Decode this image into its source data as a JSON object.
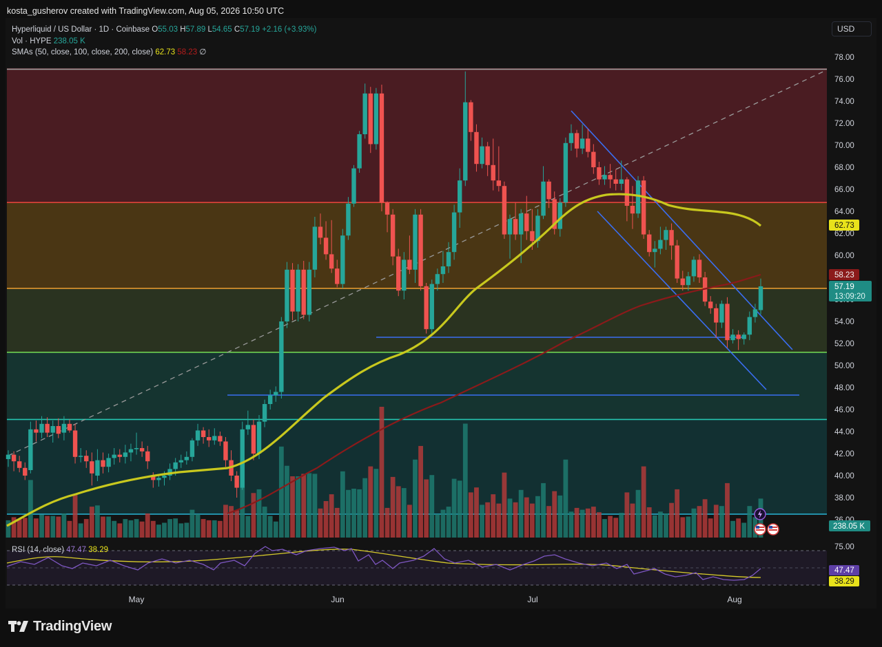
{
  "header": {
    "credit": "kosta_gusherov created with TradingView.com, Aug 05, 2026 10:50 UTC"
  },
  "legend": {
    "symbol": "Hyperliquid / US Dollar · 1D · Coinbase",
    "o_label": "O",
    "o_value": "55.03",
    "h_label": "H",
    "h_value": "57.89",
    "l_label": "L",
    "l_value": "54.65",
    "c_label": "C",
    "c_value": "57.19",
    "change": "+2.16 (+3.93%)",
    "vol_label": "Vol · HYPE",
    "vol_value": "238.05 K",
    "sma_label": "SMAs (50, close, 100, close, 200, close)",
    "sma50_value": "62.73",
    "sma100_value": "58.23",
    "sma200_value": "∅"
  },
  "currency": "USD",
  "price_axis": {
    "ticks": [
      "78.00",
      "76.00",
      "74.00",
      "72.00",
      "70.00",
      "68.00",
      "66.00",
      "64.00",
      "62.00",
      "60.00",
      "58.00",
      "56.00",
      "54.00",
      "52.00",
      "50.00",
      "48.00",
      "46.00",
      "44.00",
      "42.00",
      "40.00",
      "38.00",
      "36.00"
    ],
    "sma50_tag": "62.73",
    "sma100_tag": "58.23",
    "last_price_tag": "57.19",
    "countdown_tag": "13:09:20",
    "volume_tag": "238.05 K"
  },
  "rsi": {
    "label": "RSI (14, close)",
    "value": "47.47",
    "ma_value": "38.29",
    "axis_tick": "75.00",
    "tag_value": "47.47",
    "tag_ma": "38.29"
  },
  "time_axis": {
    "labels": [
      "May",
      "Jun",
      "Jul",
      "Aug"
    ]
  },
  "colors": {
    "up": "#26a69a",
    "down": "#ef5350",
    "sma50": "#c8c81e",
    "sma100": "#8b1a1a",
    "trendline": "#2962ff",
    "rsi_line": "#7e57c2",
    "rsi_ma": "#e8e21b"
  },
  "footer": {
    "brand": "TradingView"
  },
  "chart_data": {
    "type": "candlestick",
    "title": "Hyperliquid / US Dollar · 1D · Coinbase",
    "x_axis_labels": [
      "May",
      "Jun",
      "Jul",
      "Aug"
    ],
    "ylim": [
      35,
      79
    ],
    "zones": [
      {
        "from": 64.8,
        "to": 77,
        "color": "#4a1c22"
      },
      {
        "from": 57.0,
        "to": 64.8,
        "color": "#4a3614"
      },
      {
        "from": 51.2,
        "to": 57.0,
        "color": "#2a3320"
      },
      {
        "from": 45.1,
        "to": 51.2,
        "color": "#153430"
      },
      {
        "from": 36.5,
        "to": 45.1,
        "color": "#123032"
      }
    ],
    "horizontal_levels": [
      {
        "price": 76.9,
        "color": "#9e9e9e"
      },
      {
        "price": 64.8,
        "color": "#e0443a"
      },
      {
        "price": 57.0,
        "color": "#f0a030"
      },
      {
        "price": 51.2,
        "color": "#6fd14f"
      },
      {
        "price": 45.1,
        "color": "#26c6b0"
      },
      {
        "price": 36.5,
        "color": "#29b6d6"
      }
    ],
    "candles": [
      [
        41.5,
        42.3,
        40.8,
        41.9
      ],
      [
        41.9,
        42.2,
        40.4,
        41.3
      ],
      [
        41.3,
        41.8,
        40.3,
        40.7
      ],
      [
        40.7,
        41.2,
        39.6,
        40.0
      ],
      [
        40.5,
        44.9,
        40.2,
        44.2
      ],
      [
        44.2,
        45.0,
        43.1,
        43.9
      ],
      [
        43.9,
        45.4,
        43.4,
        44.7
      ],
      [
        44.7,
        45.3,
        43.5,
        43.9
      ],
      [
        43.9,
        45.0,
        43.0,
        44.5
      ],
      [
        44.5,
        45.2,
        43.4,
        43.8
      ],
      [
        43.9,
        45.4,
        43.2,
        44.7
      ],
      [
        44.7,
        45.1,
        43.9,
        44.1
      ],
      [
        44.1,
        44.7,
        41.1,
        41.7
      ],
      [
        41.7,
        42.5,
        41.2,
        41.8
      ],
      [
        41.8,
        42.3,
        40.7,
        41.3
      ],
      [
        41.3,
        42.1,
        39.1,
        40.2
      ],
      [
        40.0,
        42.4,
        39.5,
        41.4
      ],
      [
        41.4,
        42.1,
        40.2,
        40.8
      ],
      [
        40.8,
        42.0,
        40.3,
        41.6
      ],
      [
        41.6,
        42.5,
        41.0,
        41.9
      ],
      [
        41.9,
        42.4,
        41.2,
        41.7
      ],
      [
        41.7,
        42.8,
        41.1,
        42.1
      ],
      [
        42.1,
        42.9,
        41.3,
        42.4
      ],
      [
        42.4,
        43.9,
        41.9,
        42.5
      ],
      [
        42.5,
        43.1,
        41.7,
        42.2
      ],
      [
        42.2,
        42.7,
        40.6,
        41.3
      ],
      [
        40.0,
        40.3,
        38.9,
        39.6
      ],
      [
        39.6,
        40.0,
        39.0,
        39.8
      ],
      [
        39.8,
        40.4,
        39.1,
        40.0
      ],
      [
        40.0,
        41.1,
        39.6,
        40.6
      ],
      [
        40.6,
        41.6,
        40.0,
        41.2
      ],
      [
        41.2,
        41.9,
        40.7,
        41.4
      ],
      [
        41.4,
        42.2,
        41.0,
        41.7
      ],
      [
        41.7,
        43.4,
        41.3,
        43.2
      ],
      [
        43.2,
        44.7,
        42.7,
        44.1
      ],
      [
        44.1,
        44.4,
        42.9,
        43.5
      ],
      [
        43.5,
        44.2,
        42.6,
        43.2
      ],
      [
        43.2,
        44.3,
        42.8,
        43.6
      ],
      [
        43.6,
        44.0,
        42.7,
        43.1
      ],
      [
        43.1,
        43.5,
        40.8,
        41.4
      ],
      [
        41.4,
        42.3,
        39.5,
        40.0
      ],
      [
        40.0,
        40.4,
        38.0,
        38.9
      ],
      [
        38.9,
        44.9,
        38.7,
        44.2
      ],
      [
        44.2,
        45.9,
        43.7,
        44.6
      ],
      [
        44.6,
        45.1,
        41.4,
        42.0
      ],
      [
        42.0,
        45.5,
        41.5,
        44.9
      ],
      [
        44.9,
        46.9,
        44.4,
        46.5
      ],
      [
        46.5,
        47.8,
        46.0,
        47.3
      ],
      [
        47.3,
        48.1,
        46.7,
        47.6
      ],
      [
        47.6,
        54.4,
        47.0,
        54.0
      ],
      [
        54.0,
        59.4,
        53.4,
        58.7
      ],
      [
        58.7,
        59.3,
        54.1,
        54.9
      ],
      [
        54.9,
        59.2,
        54.0,
        58.7
      ],
      [
        58.7,
        59.5,
        54.2,
        54.6
      ],
      [
        54.6,
        59.4,
        54.0,
        58.7
      ],
      [
        58.7,
        63.5,
        58.0,
        62.6
      ],
      [
        62.6,
        63.8,
        61.0,
        61.6
      ],
      [
        61.6,
        63.1,
        59.6,
        60.1
      ],
      [
        60.1,
        63.2,
        58.4,
        58.8
      ],
      [
        58.8,
        59.6,
        57.1,
        57.4
      ],
      [
        57.4,
        62.4,
        57.0,
        61.8
      ],
      [
        61.8,
        65.3,
        61.4,
        64.7
      ],
      [
        64.7,
        68.2,
        64.4,
        67.9
      ],
      [
        67.9,
        71.3,
        67.5,
        71.0
      ],
      [
        71.0,
        75.6,
        70.6,
        74.7
      ],
      [
        74.7,
        75.3,
        69.3,
        70.1
      ],
      [
        70.1,
        75.2,
        69.6,
        74.7
      ],
      [
        74.7,
        75.5,
        64.0,
        64.8
      ],
      [
        64.8,
        64.9,
        62.1,
        63.7
      ],
      [
        63.7,
        64.2,
        59.1,
        59.9
      ],
      [
        59.9,
        60.6,
        56.3,
        56.8
      ],
      [
        56.8,
        60.3,
        56.0,
        59.6
      ],
      [
        59.6,
        61.8,
        58.3,
        58.7
      ],
      [
        58.7,
        64.2,
        57.5,
        63.7
      ],
      [
        63.7,
        64.2,
        56.8,
        57.2
      ],
      [
        57.2,
        57.5,
        52.9,
        53.3
      ],
      [
        53.3,
        57.8,
        52.7,
        57.4
      ],
      [
        57.4,
        58.8,
        56.8,
        58.3
      ],
      [
        58.3,
        60.4,
        57.5,
        59.0
      ],
      [
        59.0,
        61.2,
        58.4,
        60.3
      ],
      [
        60.3,
        64.6,
        59.6,
        63.9
      ],
      [
        63.9,
        67.9,
        62.5,
        66.8
      ],
      [
        66.8,
        76.7,
        66.3,
        73.9
      ],
      [
        73.9,
        74.1,
        70.4,
        71.2
      ],
      [
        71.2,
        71.9,
        67.6,
        68.3
      ],
      [
        68.3,
        70.7,
        67.9,
        69.9
      ],
      [
        69.9,
        70.3,
        67.2,
        68.2
      ],
      [
        68.2,
        70.6,
        65.9,
        66.8
      ],
      [
        66.8,
        69.9,
        65.8,
        66.3
      ],
      [
        66.3,
        66.7,
        61.5,
        61.9
      ],
      [
        61.9,
        63.7,
        59.7,
        63.3
      ],
      [
        63.3,
        64.8,
        61.4,
        61.9
      ],
      [
        61.9,
        64.2,
        59.3,
        63.8
      ],
      [
        63.8,
        65.4,
        61.4,
        62.2
      ],
      [
        62.2,
        64.2,
        60.5,
        61.3
      ],
      [
        61.3,
        64.2,
        60.7,
        63.6
      ],
      [
        63.6,
        68.1,
        63.3,
        66.7
      ],
      [
        66.7,
        66.9,
        64.3,
        65.1
      ],
      [
        65.1,
        65.8,
        61.9,
        62.4
      ],
      [
        62.4,
        65.2,
        61.7,
        64.8
      ],
      [
        64.8,
        70.7,
        64.4,
        70.2
      ],
      [
        70.2,
        71.9,
        69.5,
        71.1
      ],
      [
        71.1,
        71.4,
        68.9,
        69.7
      ],
      [
        69.7,
        71.9,
        69.2,
        70.6
      ],
      [
        70.6,
        71.5,
        68.9,
        69.4
      ],
      [
        69.4,
        70.1,
        67.4,
        68.0
      ],
      [
        68.0,
        68.5,
        66.4,
        66.9
      ],
      [
        66.9,
        68.1,
        66.4,
        67.3
      ],
      [
        67.3,
        68.3,
        66.1,
        66.9
      ],
      [
        66.9,
        67.8,
        65.9,
        66.5
      ],
      [
        66.5,
        68.6,
        65.9,
        66.9
      ],
      [
        66.9,
        67.1,
        63.1,
        64.5
      ],
      [
        64.5,
        66.3,
        62.4,
        63.8
      ],
      [
        63.8,
        67.2,
        63.4,
        66.8
      ],
      [
        66.8,
        67.2,
        61.5,
        61.9
      ],
      [
        61.9,
        62.3,
        59.9,
        60.3
      ],
      [
        60.3,
        61.3,
        58.9,
        60.6
      ],
      [
        60.6,
        62.6,
        60.1,
        61.4
      ],
      [
        61.4,
        62.6,
        60.5,
        62.3
      ],
      [
        62.3,
        62.9,
        59.6,
        60.9
      ],
      [
        60.9,
        61.4,
        57.5,
        57.9
      ],
      [
        57.9,
        58.6,
        56.8,
        57.3
      ],
      [
        57.3,
        58.5,
        56.8,
        58.1
      ],
      [
        58.1,
        59.9,
        57.6,
        59.6
      ],
      [
        59.6,
        60.1,
        57.5,
        58.0
      ],
      [
        58.0,
        58.5,
        55.4,
        55.8
      ],
      [
        55.8,
        56.3,
        54.7,
        55.2
      ],
      [
        55.2,
        55.6,
        52.5,
        53.9
      ],
      [
        53.9,
        55.9,
        53.4,
        55.6
      ],
      [
        55.6,
        56.2,
        51.6,
        52.3
      ],
      [
        52.3,
        53.3,
        52.0,
        52.8
      ],
      [
        52.8,
        53.2,
        51.4,
        52.4
      ],
      [
        52.4,
        53.0,
        51.9,
        52.8
      ],
      [
        52.8,
        54.9,
        52.3,
        54.4
      ],
      [
        54.4,
        55.6,
        53.9,
        55.1
      ],
      [
        55.03,
        57.89,
        54.65,
        57.19
      ]
    ],
    "volume_max": 238.05,
    "volume_unit": "K HYPE"
  }
}
